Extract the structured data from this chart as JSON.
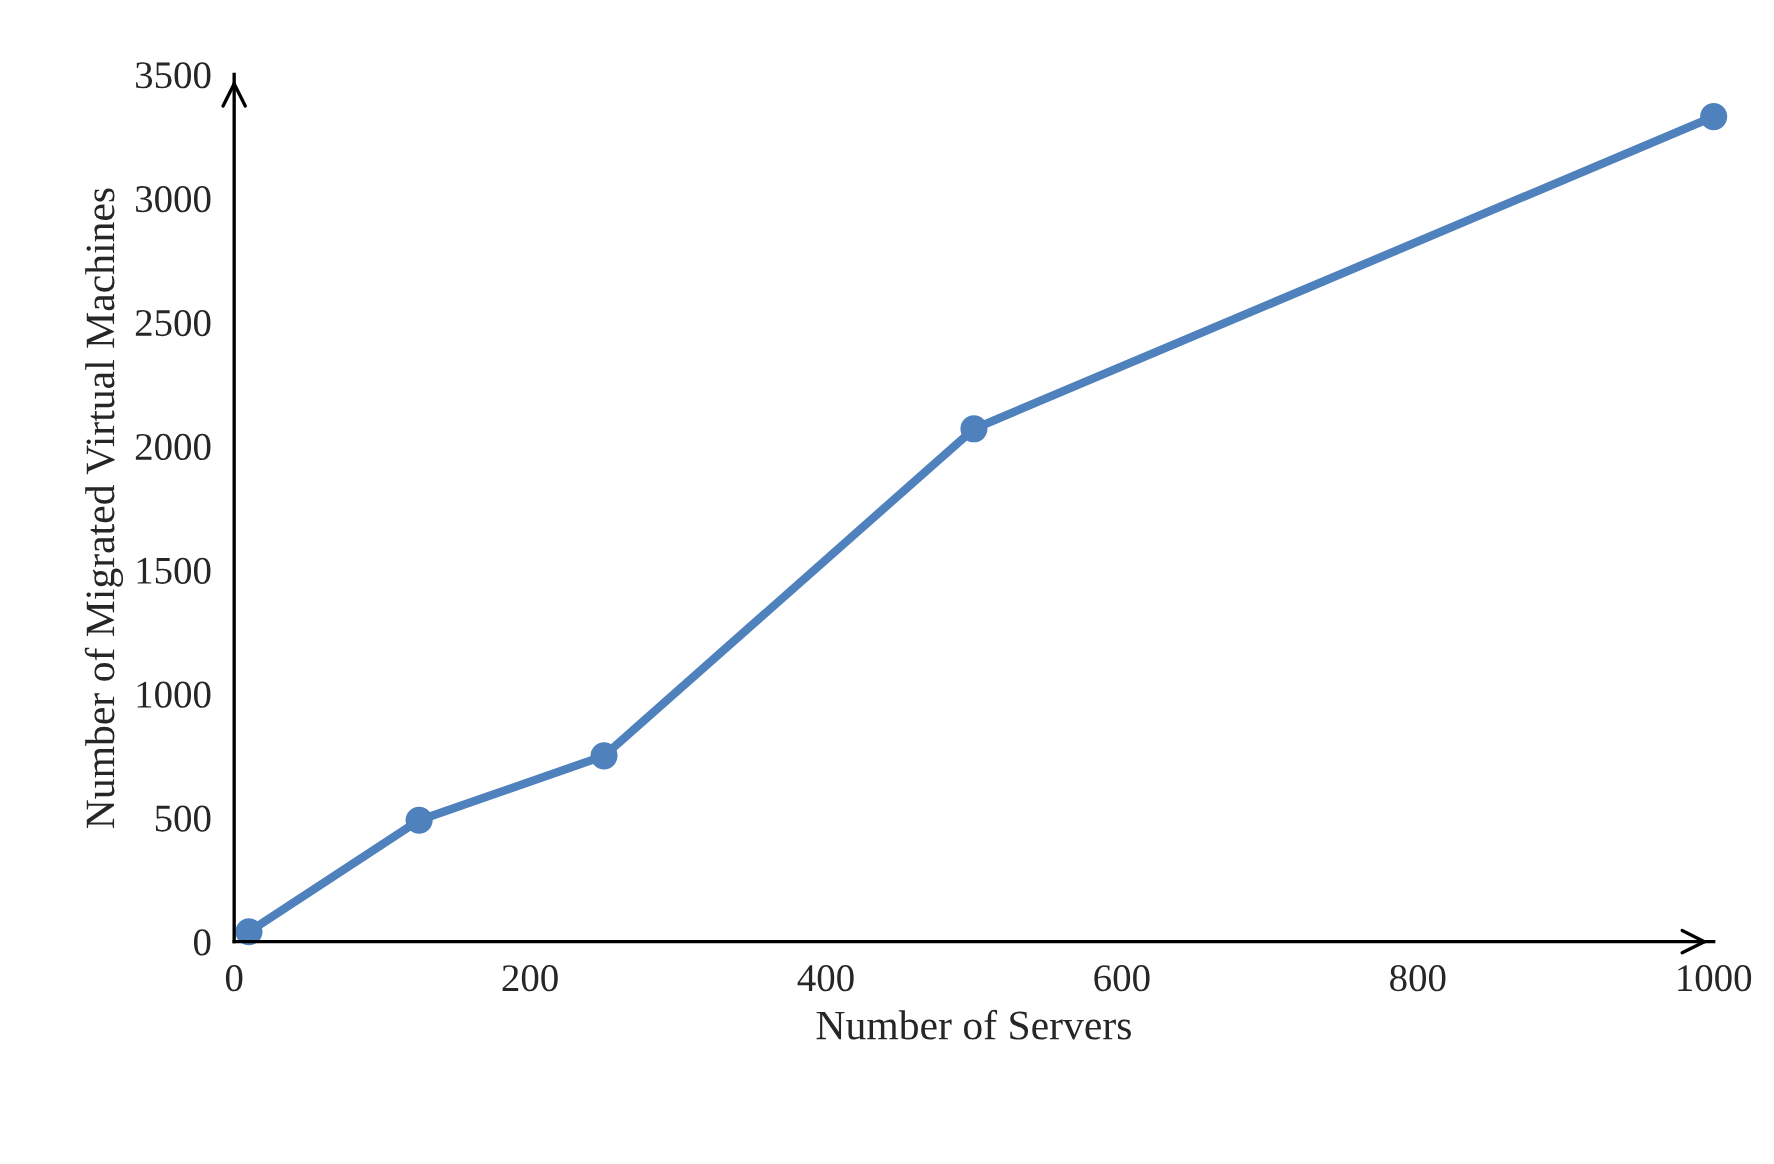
{
  "chart_data": {
    "type": "line",
    "xlabel": "Number of Servers",
    "ylabel": "Number of Migrated Virtual Machines",
    "x": [
      10,
      125,
      250,
      500,
      1000
    ],
    "series": [
      {
        "color": "#4f81bd",
        "values": [
          40,
          490,
          750,
          2070,
          3330
        ]
      }
    ],
    "xlim": [
      0,
      1000
    ],
    "xticks": [
      0,
      200,
      400,
      600,
      800,
      1000
    ],
    "ylim": [
      0,
      3500
    ],
    "yticks": [
      0,
      500,
      1000,
      1500,
      2000,
      2500,
      3000,
      3500
    ],
    "grid": false,
    "legend": false,
    "marker": "circle",
    "line_style": "solid"
  }
}
